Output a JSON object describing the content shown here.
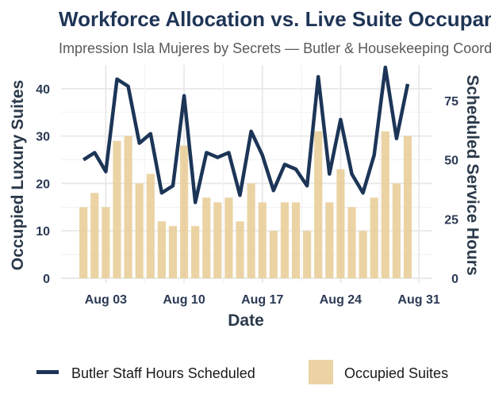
{
  "chart_data": {
    "type": "bar+line",
    "title": "Workforce Allocation vs. Live Suite Occupancy",
    "subtitle": "Impression Isla Mujeres by Secrets — Butler & Housekeeping Coordination",
    "xlabel": "Date",
    "ylabel": "Occupied Luxury Suites",
    "y2label": "Scheduled Service Hours",
    "x": [
      "2024-08-01",
      "2024-08-02",
      "2024-08-03",
      "2024-08-04",
      "2024-08-05",
      "2024-08-06",
      "2024-08-07",
      "2024-08-08",
      "2024-08-09",
      "2024-08-10",
      "2024-08-11",
      "2024-08-12",
      "2024-08-13",
      "2024-08-14",
      "2024-08-15",
      "2024-08-16",
      "2024-08-17",
      "2024-08-18",
      "2024-08-19",
      "2024-08-20",
      "2024-08-21",
      "2024-08-22",
      "2024-08-23",
      "2024-08-24",
      "2024-08-25",
      "2024-08-26",
      "2024-08-27",
      "2024-08-28",
      "2024-08-29",
      "2024-08-30"
    ],
    "x_ticks": [
      "Aug 03",
      "Aug 10",
      "Aug 17",
      "Aug 24",
      "Aug 31"
    ],
    "ylim": [
      -1,
      45
    ],
    "y_ticks": [
      0,
      10,
      20,
      30,
      40
    ],
    "y2lim": [
      -2,
      90
    ],
    "y2_ticks": [
      0,
      25,
      50,
      75
    ],
    "series": [
      {
        "name": "Occupied Suites",
        "kind": "bar",
        "axis": "left",
        "color": "#e8cb94",
        "values": [
          15,
          18,
          15,
          29,
          30,
          20,
          22,
          12,
          11,
          28,
          11,
          17,
          16,
          17,
          12,
          20,
          16,
          10,
          16,
          16,
          10,
          31,
          16,
          23,
          15,
          10,
          17,
          31,
          20,
          30
        ]
      },
      {
        "name": "Butler Staff Hours Scheduled",
        "kind": "line",
        "axis": "right",
        "color": "#1c3557",
        "values": [
          50,
          53,
          45,
          84,
          81,
          57,
          61,
          36,
          39,
          77,
          32,
          53,
          51,
          53,
          35,
          62,
          52,
          37,
          48,
          46,
          39,
          85,
          44,
          67,
          44,
          36,
          52,
          89,
          59,
          82
        ]
      }
    ],
    "legend": {
      "position": "bottom",
      "items": [
        {
          "label": "Butler Staff Hours Scheduled",
          "swatch": "line",
          "color": "#1c3557"
        },
        {
          "label": "Occupied Suites",
          "swatch": "box",
          "color": "#e8cb94"
        }
      ]
    },
    "grid": true
  }
}
